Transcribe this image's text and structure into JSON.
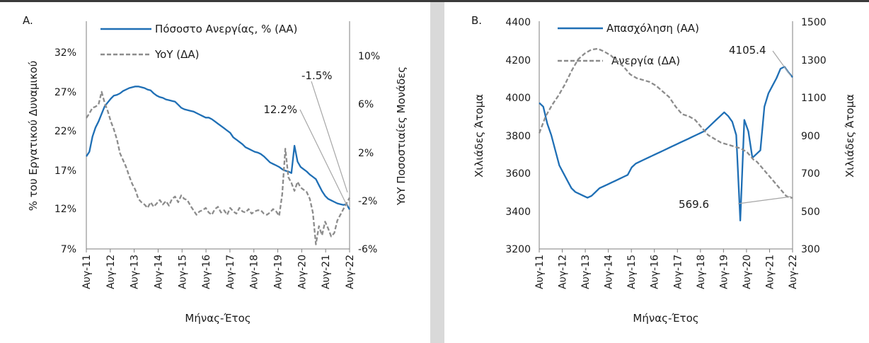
{
  "colors": {
    "primary": "#1f6fb5",
    "secondary": "#8c8c8c",
    "divider": "#d9d9d9",
    "frame": "#3a3a3a"
  },
  "chart_data": [
    {
      "type": "line",
      "panel_label": "A.",
      "xlabel": "Μήνας-Έτος",
      "ylabel_left": "% του Εργατικού Δυναμικού",
      "ylabel_right": "YoY Ποσοστιαίες Μονάδες",
      "x_ticks": [
        "Αυγ-11",
        "Αυγ-12",
        "Αυγ-13",
        "Αυγ-14",
        "Αυγ-15",
        "Αυγ-16",
        "Αυγ-17",
        "Αυγ-18",
        "Αυγ-19",
        "Αυγ-20",
        "Αυγ-21",
        "Αυγ-22"
      ],
      "y_left_ticks": [
        "7%",
        "12%",
        "17%",
        "22%",
        "27%",
        "32%"
      ],
      "y_left_lim": [
        7,
        37
      ],
      "y_right_ticks": [
        "-6%",
        "-2%",
        "2%",
        "6%",
        "10%"
      ],
      "y_right_lim": [
        -6,
        14
      ],
      "legend_position": "top-center",
      "series": [
        {
          "name": "Πόσοστο Ανεργίας, % (ΑΑ)",
          "axis": "left",
          "style": "solid",
          "values": [
            19.2,
            19.8,
            21.8,
            23.0,
            23.8,
            24.8,
            25.8,
            26.3,
            26.8,
            27.2,
            27.3,
            27.5,
            27.8,
            28.0,
            28.2,
            28.3,
            28.4,
            28.4,
            28.3,
            28.2,
            28.0,
            27.9,
            27.5,
            27.2,
            27.0,
            26.9,
            26.7,
            26.6,
            26.5,
            26.4,
            26.0,
            25.6,
            25.4,
            25.3,
            25.2,
            25.1,
            24.9,
            24.7,
            24.5,
            24.3,
            24.3,
            24.1,
            23.8,
            23.5,
            23.2,
            22.9,
            22.6,
            22.3,
            21.7,
            21.4,
            21.1,
            20.8,
            20.4,
            20.2,
            20.0,
            19.8,
            19.7,
            19.5,
            19.2,
            18.8,
            18.4,
            18.2,
            18.0,
            17.8,
            17.5,
            17.3,
            17.2,
            17.0,
            20.6,
            18.5,
            17.8,
            17.5,
            17.2,
            16.8,
            16.5,
            16.2,
            15.4,
            14.6,
            14.0,
            13.6,
            13.4,
            13.2,
            13.0,
            12.9,
            12.8,
            12.9,
            12.2
          ]
        },
        {
          "name": "YoY (ΔΑ)",
          "axis": "right",
          "style": "dashed",
          "values": [
            5.5,
            5.9,
            6.4,
            6.5,
            6.7,
            7.8,
            6.8,
            6.1,
            5.2,
            4.5,
            3.6,
            2.4,
            1.8,
            1.2,
            0.4,
            -0.3,
            -0.8,
            -1.6,
            -1.9,
            -2.1,
            -2.4,
            -1.9,
            -2.3,
            -2.0,
            -1.7,
            -2.1,
            -1.8,
            -2.2,
            -1.6,
            -1.4,
            -1.9,
            -1.3,
            -1.6,
            -1.7,
            -2.2,
            -2.6,
            -3.0,
            -2.7,
            -2.6,
            -2.4,
            -2.8,
            -3.0,
            -2.5,
            -2.3,
            -2.8,
            -2.6,
            -3.0,
            -2.4,
            -2.7,
            -2.9,
            -2.4,
            -2.7,
            -2.8,
            -2.5,
            -2.9,
            -2.7,
            -2.6,
            -2.6,
            -2.9,
            -3.0,
            -2.8,
            -2.5,
            -2.7,
            -3.1,
            -1.2,
            2.8,
            0.3,
            -0.2,
            -0.9,
            -0.1,
            -0.6,
            -0.8,
            -1.0,
            -1.6,
            -2.8,
            -5.6,
            -4.0,
            -4.8,
            -3.6,
            -4.2,
            -4.9,
            -4.6,
            -3.5,
            -3.0,
            -2.5,
            -2.0,
            -1.5
          ]
        }
      ],
      "annotations": [
        {
          "label": "12.2%",
          "series": 0,
          "index": 86
        },
        {
          "label": "-1.5%",
          "series": 1,
          "index": 86
        }
      ]
    },
    {
      "type": "line",
      "panel_label": "B.",
      "xlabel": "Μήνας-Έτος",
      "ylabel_left": "Χιλιάδες Άτομα",
      "ylabel_right": "Χιλιάδες Άτομα",
      "x_ticks": [
        "Αυγ-11",
        "Αυγ-12",
        "Αυγ-13",
        "Αυγ-14",
        "Αυγ-15",
        "Αυγ-16",
        "Αυγ-17",
        "Αυγ-18",
        "Αυγ-19",
        "Αυγ-20",
        "Αυγ-21",
        "Αυγ-22"
      ],
      "y_left_ticks": [
        "3200",
        "3400",
        "3600",
        "3800",
        "4000",
        "4200",
        "4400"
      ],
      "y_left_lim": [
        3200,
        4400
      ],
      "y_right_ticks": [
        "300",
        "500",
        "700",
        "900",
        "1100",
        "1300",
        "1500"
      ],
      "y_right_lim": [
        300,
        1500
      ],
      "legend_position": "top-center",
      "series": [
        {
          "name": "Απασχόληση (ΑΑ)",
          "axis": "left",
          "style": "solid",
          "values": [
            3970,
            3950,
            3860,
            3800,
            3720,
            3640,
            3600,
            3560,
            3520,
            3500,
            3490,
            3480,
            3470,
            3480,
            3500,
            3520,
            3530,
            3540,
            3550,
            3560,
            3570,
            3580,
            3590,
            3630,
            3650,
            3660,
            3670,
            3680,
            3690,
            3700,
            3710,
            3720,
            3730,
            3740,
            3750,
            3760,
            3770,
            3780,
            3790,
            3800,
            3810,
            3820,
            3840,
            3860,
            3880,
            3900,
            3920,
            3900,
            3870,
            3800,
            3350,
            3880,
            3820,
            3680,
            3700,
            3720,
            3950,
            4020,
            4060,
            4100,
            4150,
            4160,
            4130,
            4105
          ],
          "x_positions": [
            0,
            1,
            2,
            3,
            4,
            5,
            6,
            7,
            8,
            9,
            10,
            11,
            12,
            13,
            14,
            15,
            16,
            17,
            18,
            19,
            20,
            21,
            22,
            23,
            24,
            25,
            26,
            27,
            28,
            29,
            30,
            31,
            32,
            33,
            34,
            35,
            36,
            37,
            38,
            39,
            40,
            41,
            42,
            43,
            44,
            45,
            46,
            47,
            48,
            49,
            50,
            51,
            52,
            53,
            54,
            55,
            56,
            57,
            58,
            59,
            60,
            61,
            62,
            63
          ]
        },
        {
          "name": "Ανεργία (ΔΑ)",
          "axis": "right",
          "style": "dashed",
          "values": [
            910,
            1000,
            1060,
            1110,
            1170,
            1240,
            1300,
            1330,
            1350,
            1355,
            1340,
            1320,
            1290,
            1260,
            1220,
            1200,
            1190,
            1180,
            1160,
            1130,
            1100,
            1050,
            1010,
            1000,
            980,
            940,
            900,
            880,
            860,
            850,
            840,
            830,
            820,
            810,
            790,
            770,
            760,
            740,
            720,
            700,
            680,
            660,
            640,
            620,
            600,
            580,
            570,
            570
          ],
          "x_positions": [
            0,
            2,
            4,
            6,
            8,
            10,
            12,
            14,
            16,
            18,
            20,
            22,
            24,
            26,
            28,
            30,
            32,
            34,
            36,
            38,
            40,
            42,
            44,
            46,
            48,
            50,
            52,
            54,
            56,
            58,
            60,
            62,
            63,
            64,
            65,
            66,
            67,
            68,
            69,
            70,
            71,
            72,
            73,
            74,
            75,
            76,
            77,
            78
          ]
        }
      ],
      "annotations": [
        {
          "label": "4105.4",
          "series": 0
        },
        {
          "label": "569.6",
          "series": 1
        }
      ]
    }
  ]
}
